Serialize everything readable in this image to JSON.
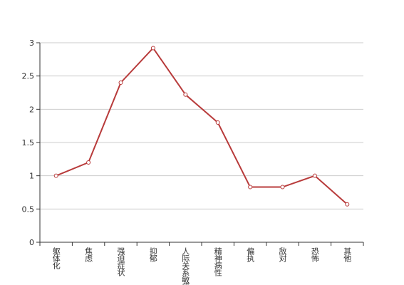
{
  "chart_data": {
    "type": "line",
    "categories": [
      "躯体化",
      "焦虑",
      "强迫症状",
      "抑郁",
      "人际关系敏感",
      "精神病性",
      "偏执",
      "敌对",
      "恐怖",
      "其他"
    ],
    "values": [
      1.0,
      1.2,
      2.4,
      2.92,
      2.22,
      1.8,
      0.83,
      0.83,
      1.0,
      0.57
    ],
    "color": "#b83b3b",
    "ylim": [
      0,
      3
    ],
    "yticks": [
      0,
      0.5,
      1,
      1.5,
      2,
      2.5,
      3
    ],
    "grid": true
  }
}
